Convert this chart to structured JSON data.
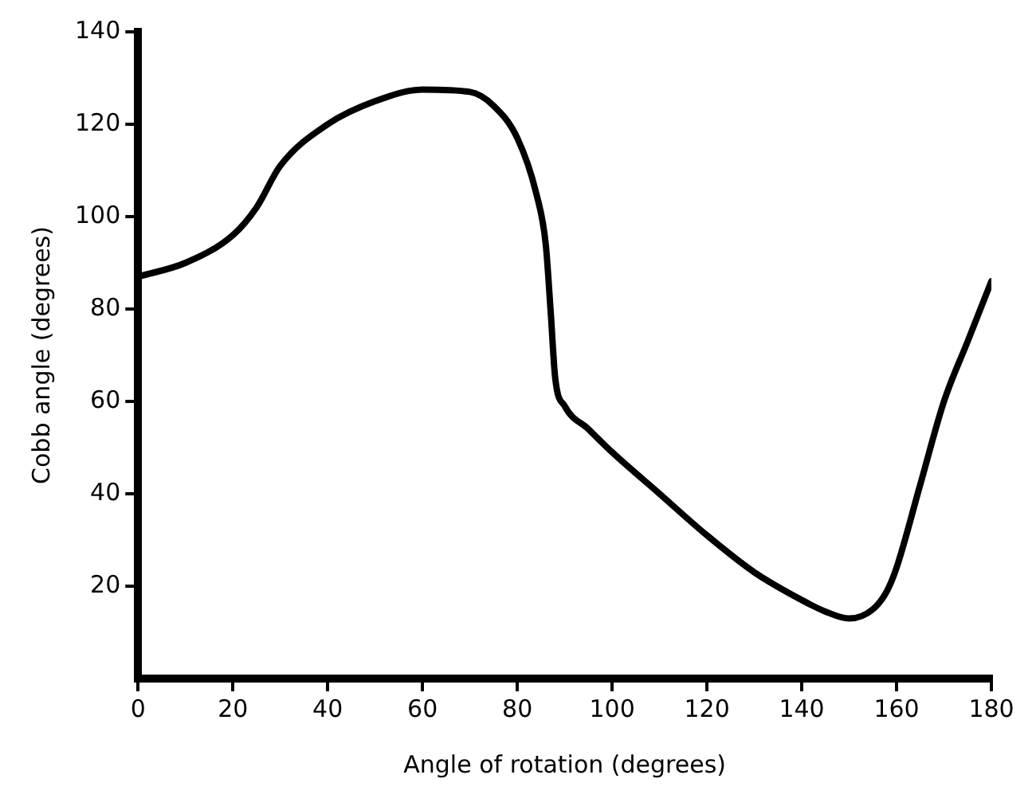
{
  "chart_data": {
    "type": "line",
    "xlabel": "Angle of rotation (degrees)",
    "ylabel": "Cobb angle (degrees)",
    "xlim": [
      0,
      180
    ],
    "xticks": [
      0,
      20,
      40,
      60,
      80,
      100,
      120,
      140,
      160,
      180
    ],
    "ylim": [
      0,
      140
    ],
    "yticks": [
      20,
      40,
      60,
      80,
      100,
      120,
      140
    ],
    "grid": false,
    "marker": "none",
    "line_style": "solid",
    "series": [
      {
        "color": "#000000",
        "x": [
          0,
          10,
          20,
          25,
          30,
          40,
          50,
          60,
          70,
          75,
          80,
          84,
          86,
          87,
          88,
          90,
          95,
          100,
          110,
          120,
          130,
          140,
          145,
          150,
          155,
          158,
          160,
          165,
          170,
          175,
          180
        ],
        "values": [
          87,
          90,
          96,
          102,
          111,
          120,
          125,
          127.5,
          127,
          124,
          117,
          105,
          94,
          80,
          65,
          59,
          54,
          49,
          40,
          31,
          23,
          17,
          14.5,
          13,
          15,
          19,
          24,
          42,
          60,
          73,
          86
        ]
      }
    ]
  }
}
